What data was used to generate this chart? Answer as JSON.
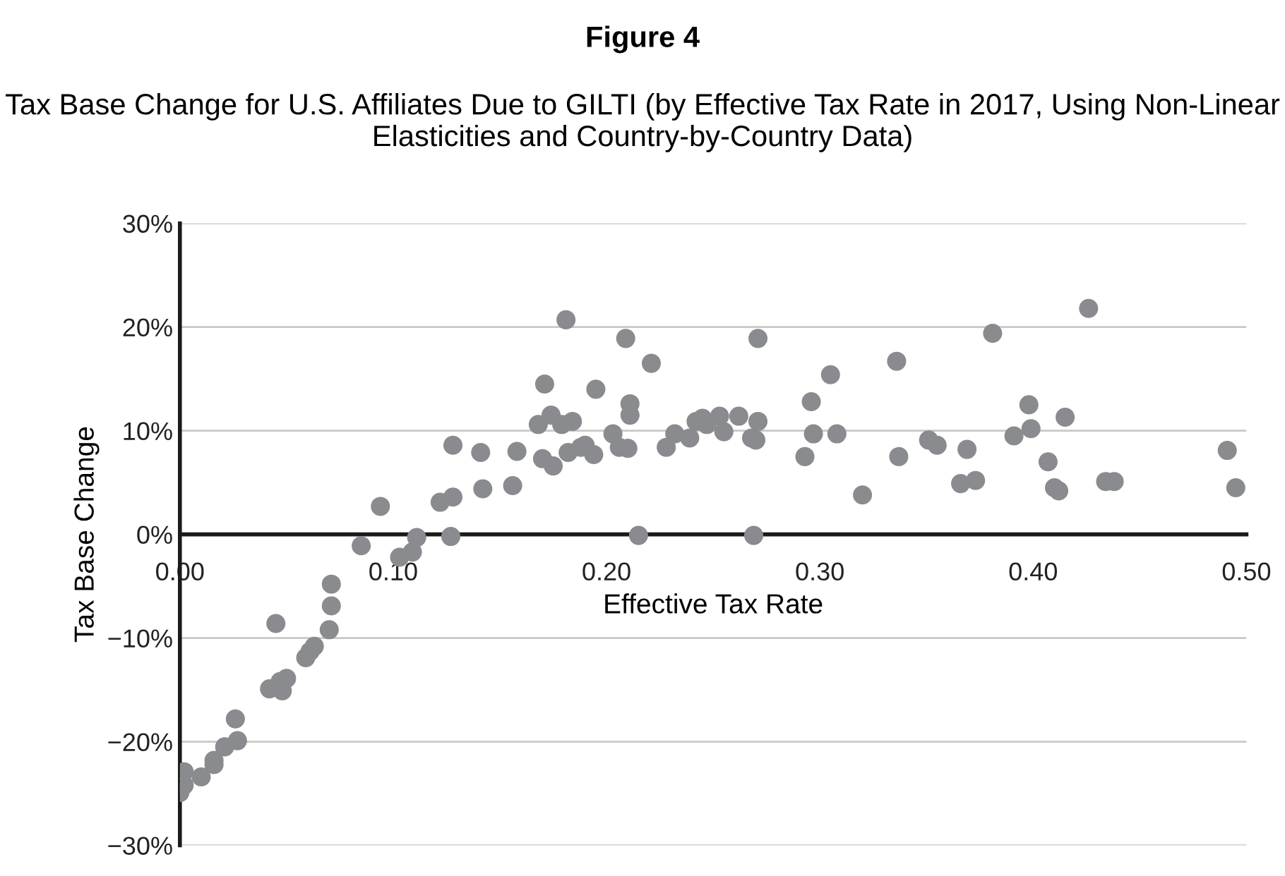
{
  "chart_data": {
    "type": "scatter",
    "title": "Figure 4",
    "subtitle": "Tax Base Change for U.S. Affiliates Due to GILTI (by Effective Tax Rate in 2017, Using Non-Linear Elasticities and Country-by-Country Data)",
    "xlabel": "Effective Tax Rate",
    "ylabel": "Tax Base Change",
    "xlim": [
      0,
      0.5
    ],
    "ylim": [
      -30,
      30
    ],
    "xticks": [
      {
        "value": 0,
        "label": "0.00"
      },
      {
        "value": 0.1,
        "label": "0.10"
      },
      {
        "value": 0.2,
        "label": "0.20"
      },
      {
        "value": 0.3,
        "label": "0.30"
      },
      {
        "value": 0.4,
        "label": "0.40"
      },
      {
        "value": 0.5,
        "label": "0.50"
      }
    ],
    "yticks": [
      {
        "value": -30,
        "label": "−30%"
      },
      {
        "value": -20,
        "label": "−20%"
      },
      {
        "value": -10,
        "label": "−10%"
      },
      {
        "value": 0,
        "label": "0%"
      },
      {
        "value": 10,
        "label": "10%"
      },
      {
        "value": 20,
        "label": "20%"
      },
      {
        "value": 30,
        "label": "30%"
      }
    ],
    "grid": "y",
    "marker": "circle",
    "legend": false,
    "series": [
      {
        "color": "#8a8b8f",
        "x": [
          0.0,
          0.002,
          0.002,
          0.01,
          0.016,
          0.016,
          0.021,
          0.027,
          0.026,
          0.042,
          0.048,
          0.047,
          0.05,
          0.045,
          0.059,
          0.061,
          0.063,
          0.07,
          0.071,
          0.071,
          0.085,
          0.094,
          0.103,
          0.109,
          0.111,
          0.122,
          0.128,
          0.128,
          0.127,
          0.141,
          0.142,
          0.156,
          0.158,
          0.168,
          0.171,
          0.174,
          0.17,
          0.175,
          0.179,
          0.184,
          0.181,
          0.182,
          0.188,
          0.19,
          0.194,
          0.195,
          0.203,
          0.206,
          0.21,
          0.209,
          0.211,
          0.211,
          0.221,
          0.215,
          0.228,
          0.232,
          0.239,
          0.242,
          0.245,
          0.247,
          0.253,
          0.255,
          0.262,
          0.271,
          0.271,
          0.268,
          0.27,
          0.269,
          0.293,
          0.296,
          0.297,
          0.305,
          0.308,
          0.32,
          0.336,
          0.337,
          0.351,
          0.355,
          0.369,
          0.366,
          0.373,
          0.381,
          0.391,
          0.398,
          0.399,
          0.407,
          0.41,
          0.412,
          0.415,
          0.426,
          0.434,
          0.438,
          0.491,
          0.495
        ],
        "values": [
          -24.9,
          -24.2,
          -22.9,
          -23.4,
          -22.2,
          -21.8,
          -20.5,
          -19.9,
          -17.8,
          -14.9,
          -15.1,
          -14.2,
          -13.9,
          -8.6,
          -11.9,
          -11.3,
          -10.8,
          -9.2,
          -6.9,
          -4.8,
          -1.1,
          2.7,
          -2.2,
          -1.7,
          -0.3,
          3.1,
          3.6,
          8.6,
          -0.2,
          7.9,
          4.4,
          4.7,
          8.0,
          10.6,
          14.5,
          11.5,
          7.3,
          6.6,
          10.6,
          10.9,
          20.7,
          7.9,
          8.4,
          8.6,
          7.7,
          14.0,
          9.7,
          8.4,
          8.3,
          18.9,
          12.6,
          11.5,
          16.5,
          -0.1,
          8.4,
          9.7,
          9.3,
          10.9,
          11.2,
          10.6,
          11.4,
          9.9,
          11.4,
          18.9,
          10.9,
          9.3,
          9.1,
          -0.1,
          7.5,
          12.8,
          9.7,
          15.4,
          9.7,
          3.8,
          16.7,
          7.5,
          9.1,
          8.6,
          8.2,
          4.9,
          5.2,
          19.4,
          9.5,
          12.5,
          10.2,
          7.0,
          4.5,
          4.2,
          11.3,
          21.8,
          5.1,
          5.1,
          8.1,
          4.5
        ]
      }
    ]
  }
}
